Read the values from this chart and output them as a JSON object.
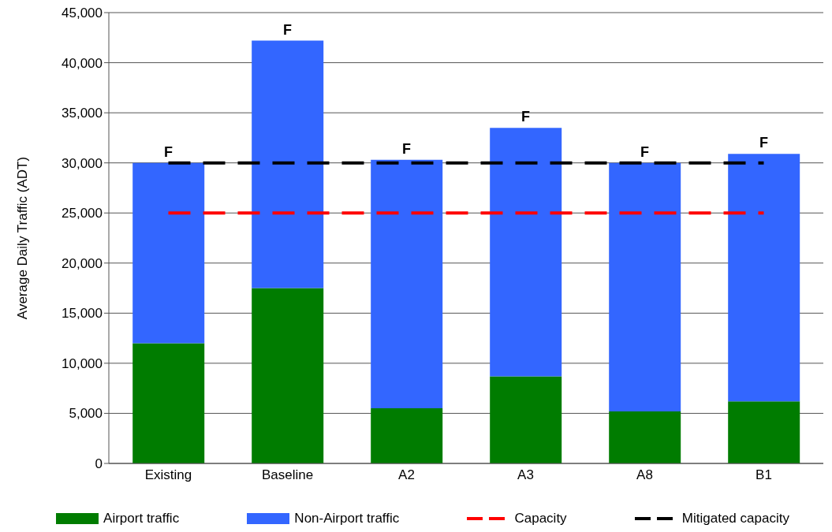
{
  "chart_data": {
    "type": "bar",
    "stacked": true,
    "ylabel": "Average Daily Traffic (ADT)",
    "categories": [
      "Existing",
      "Baseline",
      "A2",
      "A3",
      "A8",
      "B1"
    ],
    "series": [
      {
        "name": "Airport traffic",
        "color": "#007c00",
        "values": [
          12000,
          17500,
          5500,
          8700,
          5200,
          6200
        ]
      },
      {
        "name": "Non-Airport traffic",
        "color": "#3366ff",
        "values": [
          18000,
          24700,
          24800,
          24800,
          24800,
          24700
        ]
      },
      {
        "name": "Capacity",
        "type": "line",
        "color": "#ff0000",
        "line_style": "dashed",
        "values": [
          25000,
          25000,
          25000,
          25000,
          25000,
          25000
        ]
      },
      {
        "name": "Mitigated capacity",
        "type": "line",
        "color": "#000000",
        "line_style": "dashed",
        "values": [
          30000,
          30000,
          30000,
          30000,
          30000,
          30000
        ]
      }
    ],
    "annotations": [
      {
        "text": "F",
        "x": "Existing",
        "y": 30000
      },
      {
        "text": "F",
        "x": "Baseline",
        "y": 42200
      },
      {
        "text": "F",
        "x": "A2",
        "y": 30300
      },
      {
        "text": "F",
        "x": "A3",
        "y": 33500
      },
      {
        "text": "F",
        "x": "A8",
        "y": 30000
      },
      {
        "text": "F",
        "x": "B1",
        "y": 30900
      }
    ],
    "ylim": [
      0,
      45000
    ],
    "yticks": [
      0,
      {
        "value": 5000,
        "label": "5,000"
      },
      {
        "value": 10000,
        "label": "10,000"
      },
      {
        "value": 15000,
        "label": "15,000"
      },
      {
        "value": 20000,
        "label": "20,000"
      },
      {
        "value": 25000,
        "label": "25,000"
      },
      {
        "value": 30000,
        "label": "30,000"
      },
      {
        "value": 35000,
        "label": "35,000"
      },
      {
        "value": 40000,
        "label": "40,000"
      },
      {
        "value": 45000,
        "label": "45,000"
      }
    ],
    "grid": "y",
    "legend": "bottom",
    "marker": "none"
  }
}
